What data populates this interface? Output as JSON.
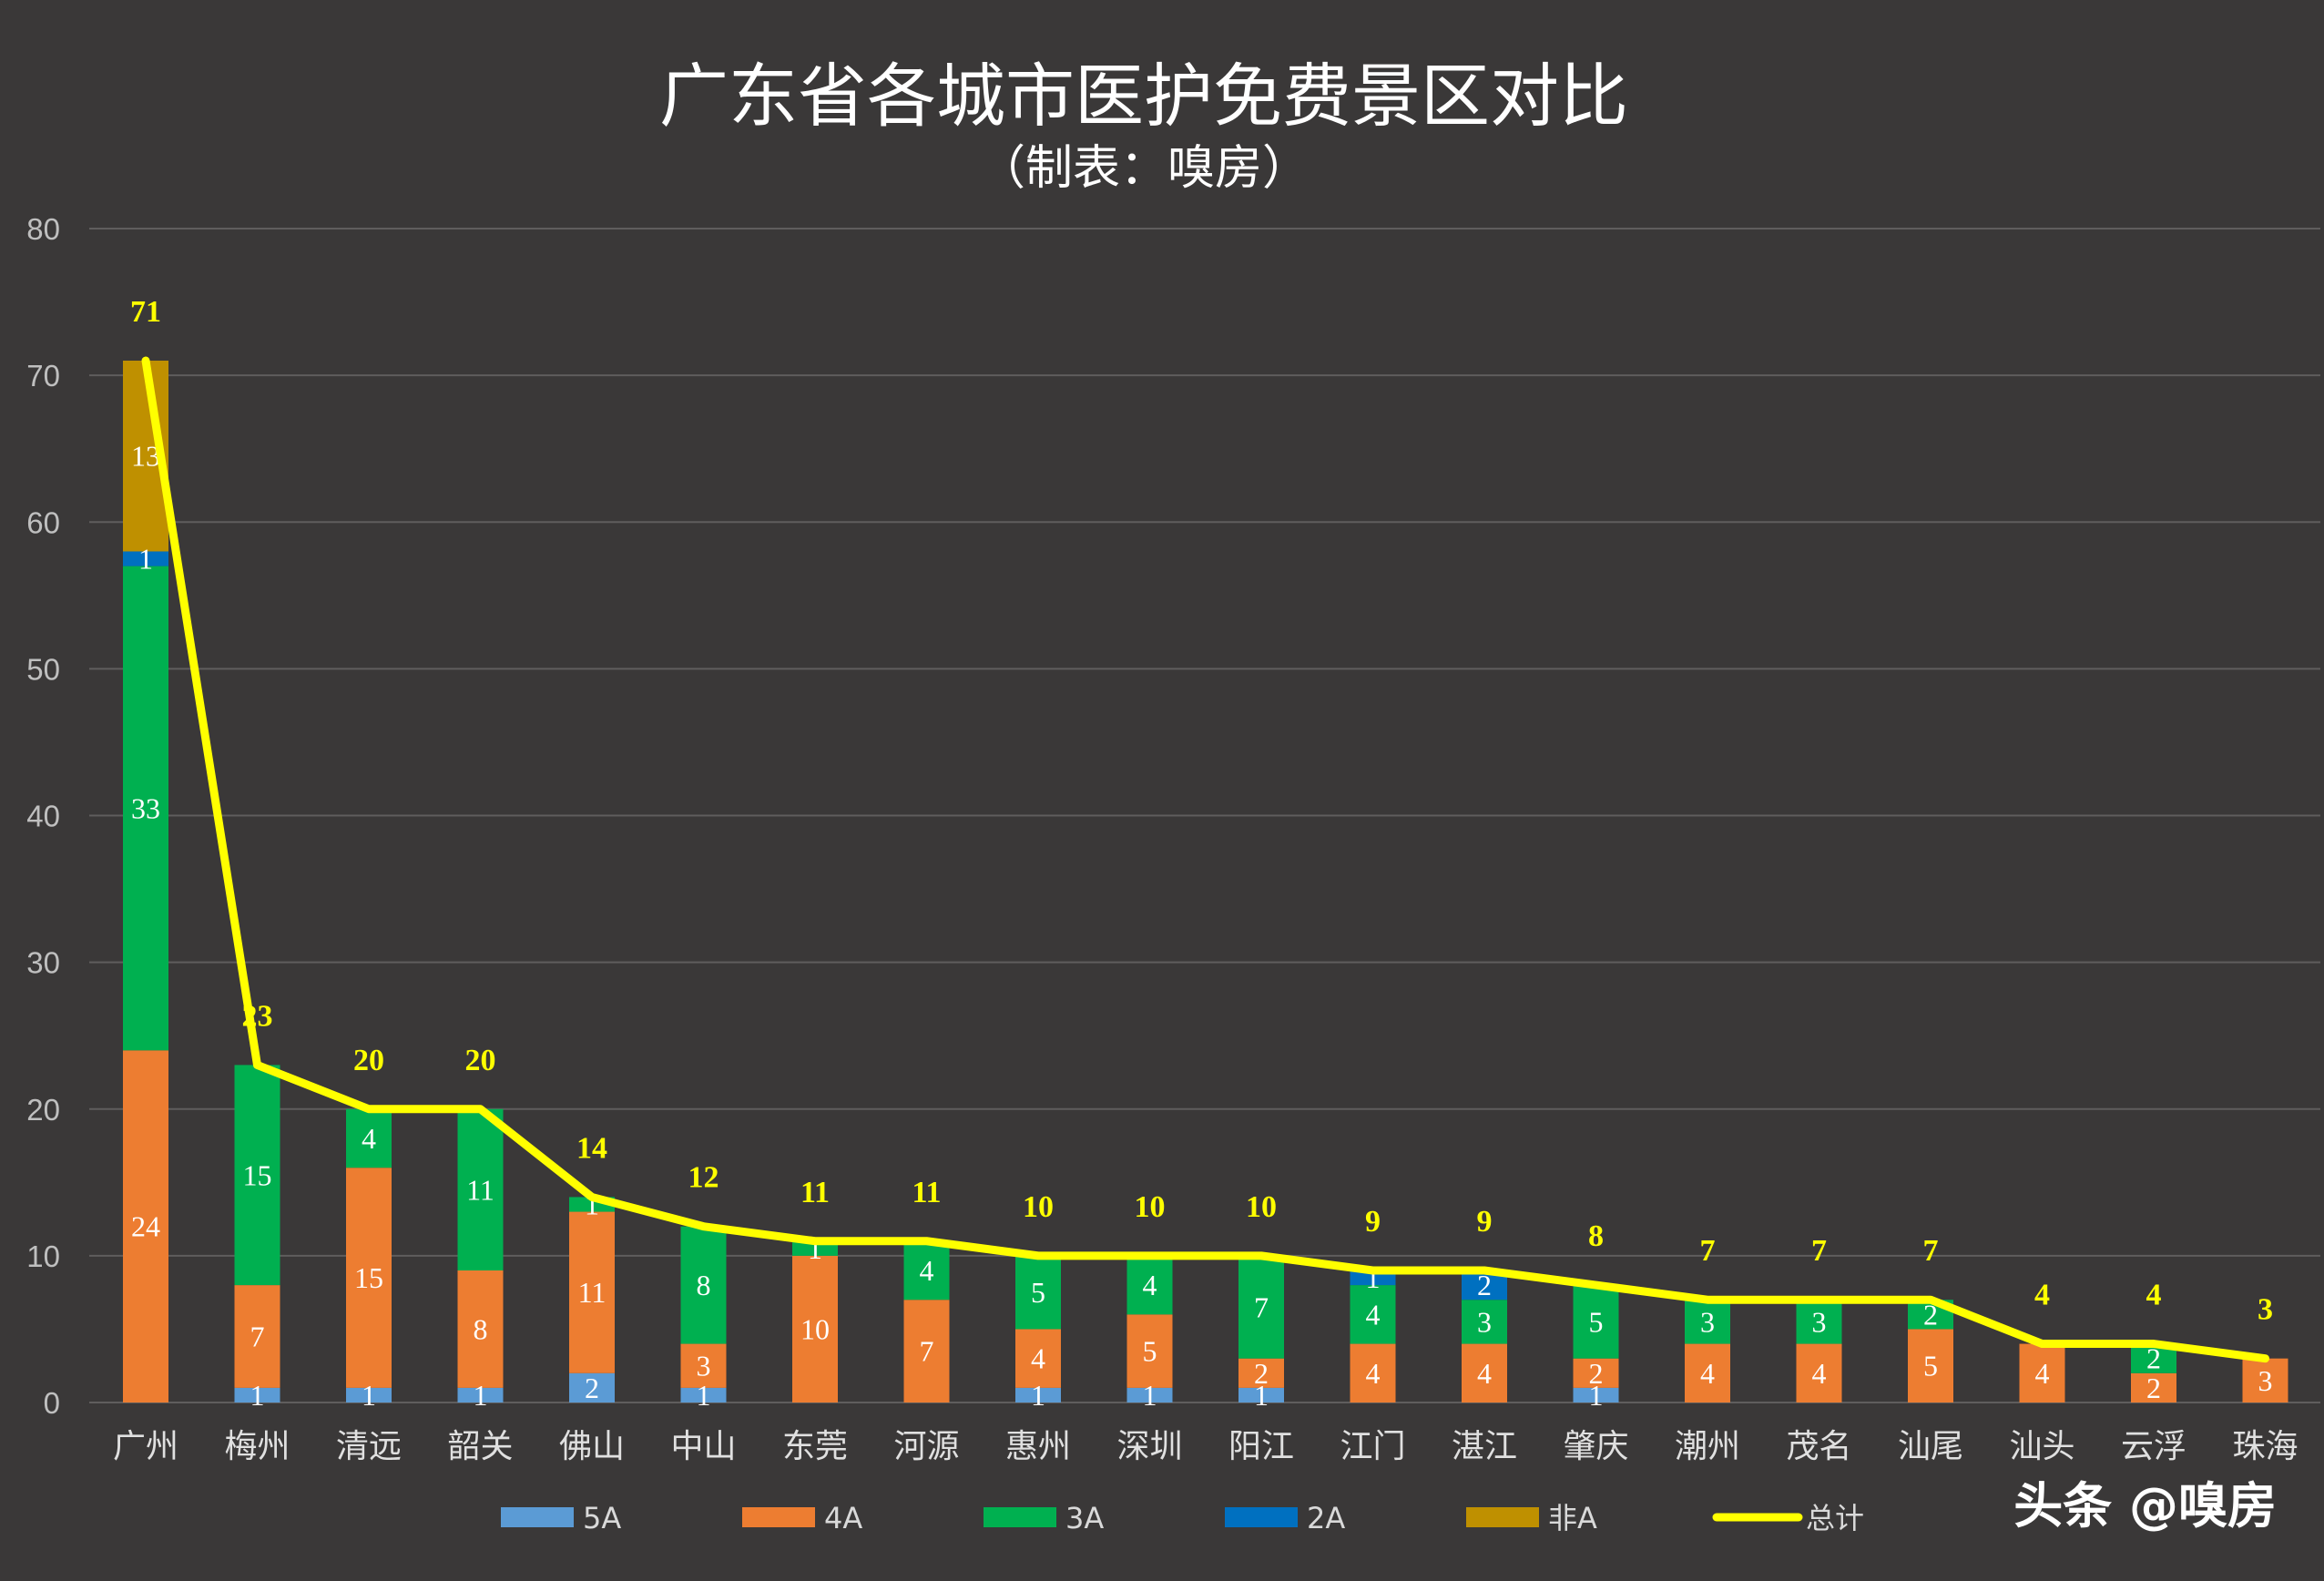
{
  "chart_data": {
    "type": "bar",
    "stacked": true,
    "title": "广东省各城市医护免费景区对比",
    "subtitle": "（制表：嗅房）",
    "ylim": [
      0,
      80
    ],
    "yticks": [
      0,
      10,
      20,
      30,
      40,
      50,
      60,
      70,
      80
    ],
    "grid": true,
    "legend": "bottom",
    "categories": [
      "广州",
      "梅州",
      "清远",
      "韶关",
      "佛山",
      "中山",
      "东莞",
      "河源",
      "惠州",
      "深圳",
      "阳江",
      "江门",
      "湛江",
      "肇庆",
      "潮州",
      "茂名",
      "汕尾",
      "汕头",
      "云浮",
      "珠海"
    ],
    "series": [
      {
        "name": "5A",
        "color": "#5b9bd5",
        "values": [
          0,
          1,
          1,
          1,
          2,
          1,
          0,
          0,
          1,
          1,
          1,
          0,
          0,
          1,
          0,
          0,
          0,
          0,
          0,
          0
        ]
      },
      {
        "name": "4A",
        "color": "#ed7d31",
        "values": [
          24,
          7,
          15,
          8,
          11,
          3,
          10,
          7,
          4,
          5,
          2,
          4,
          4,
          2,
          4,
          4,
          5,
          4,
          2,
          3
        ]
      },
      {
        "name": "3A",
        "color": "#00b050",
        "values": [
          33,
          15,
          4,
          11,
          1,
          8,
          1,
          4,
          5,
          4,
          7,
          4,
          3,
          5,
          3,
          3,
          2,
          0,
          2,
          0
        ]
      },
      {
        "name": "2A",
        "color": "#0070c0",
        "values": [
          1,
          0,
          0,
          0,
          0,
          0,
          0,
          0,
          0,
          0,
          0,
          1,
          2,
          0,
          0,
          0,
          0,
          0,
          0,
          0
        ]
      },
      {
        "name": "非A",
        "color": "#bf9000",
        "values": [
          13,
          0,
          0,
          0,
          0,
          0,
          0,
          0,
          0,
          0,
          0,
          0,
          0,
          0,
          0,
          0,
          0,
          0,
          0,
          0
        ]
      }
    ],
    "total": {
      "name": "总计",
      "color": "#ffff00",
      "values": [
        71,
        23,
        20,
        20,
        14,
        12,
        11,
        11,
        10,
        10,
        10,
        9,
        9,
        8,
        7,
        7,
        7,
        4,
        4,
        3
      ]
    }
  },
  "watermark": "头条 @嗅房"
}
